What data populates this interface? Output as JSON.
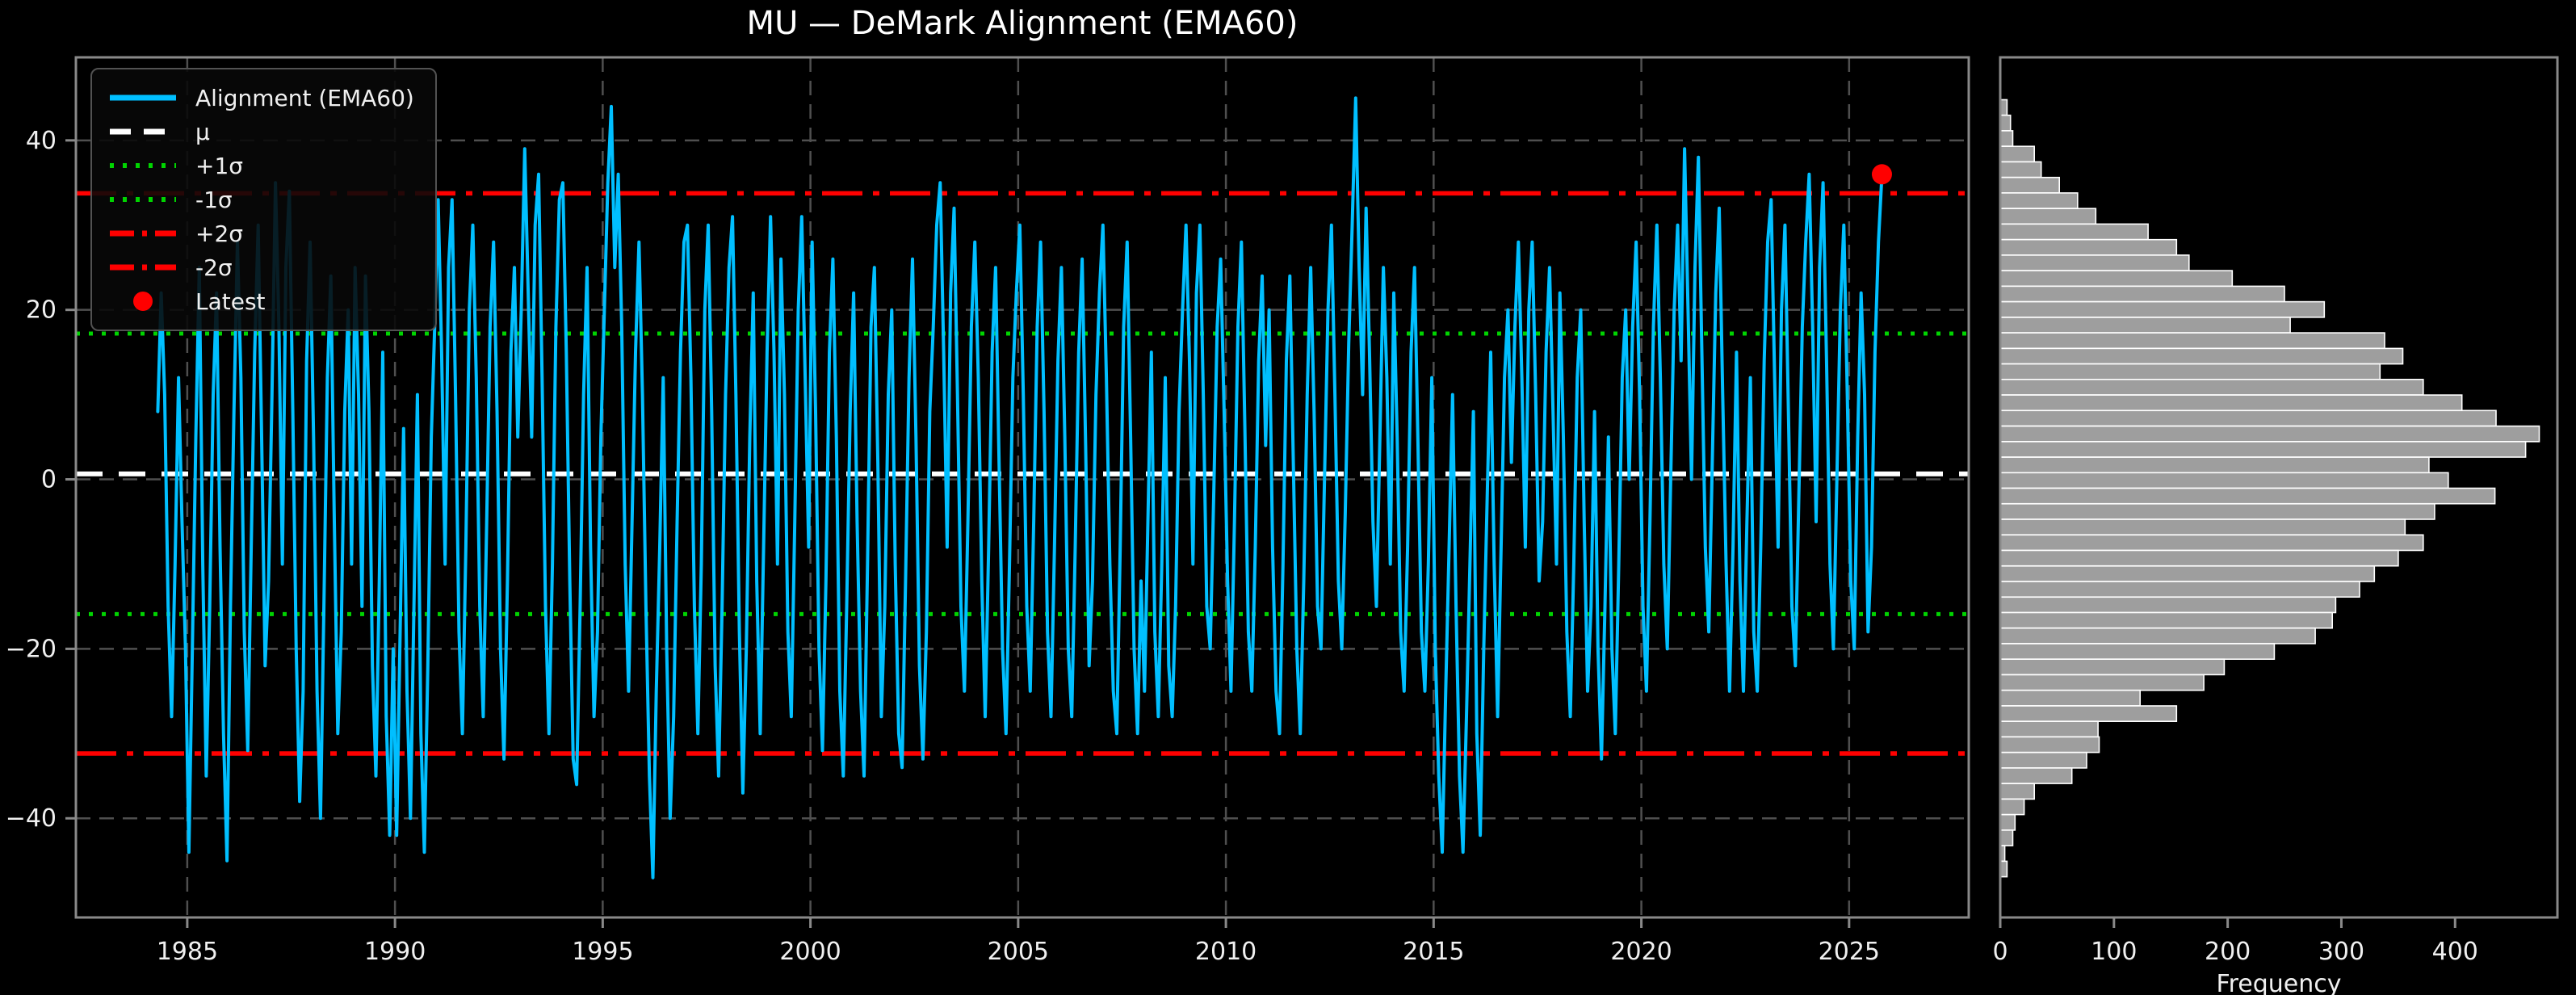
{
  "title": "MU — DeMark Alignment (EMA60)",
  "colors": {
    "background": "#000000",
    "series_line": "#00BFFF",
    "mu_line": "#FFFFFF",
    "sigma1_line": "#00D400",
    "sigma2_line": "#FF0000",
    "latest_marker": "#FF0000",
    "grid": "#4f4f4f",
    "spine": "#898989",
    "tick_text": "#f0f0f0",
    "hist_bar_fill": "#9e9e9e",
    "hist_bar_edge": "#ffffff"
  },
  "legend": {
    "items": [
      {
        "label": "Alignment (EMA60)",
        "style": "solid",
        "color": "#00BFFF"
      },
      {
        "label": "μ",
        "style": "dashed",
        "color": "#FFFFFF"
      },
      {
        "label": "+1σ",
        "style": "dotted",
        "color": "#00D400"
      },
      {
        "label": "-1σ",
        "style": "dotted",
        "color": "#00D400"
      },
      {
        "label": "+2σ",
        "style": "dashdot",
        "color": "#FF0000"
      },
      {
        "label": "-2σ",
        "style": "dashdot",
        "color": "#FF0000"
      },
      {
        "label": "Latest",
        "style": "marker",
        "color": "#FF0000"
      }
    ]
  },
  "chart_data": [
    {
      "type": "line",
      "panel": "main",
      "title": "MU — DeMark Alignment (EMA60)",
      "xlabel": "",
      "ylabel": "",
      "xlim": [
        1982.32,
        2027.88
      ],
      "ylim": [
        -51.7,
        49.8
      ],
      "grid": true,
      "x_ticks": [
        1985,
        1990,
        1995,
        2000,
        2005,
        2010,
        2015,
        2020,
        2025
      ],
      "x_tick_labels": [
        "1985",
        "1990",
        "1995",
        "2000",
        "2005",
        "2010",
        "2015",
        "2020",
        "2025"
      ],
      "y_ticks": [
        -40,
        -20,
        0,
        20,
        40
      ],
      "y_tick_labels": [
        "−40",
        "−20",
        "0",
        "20",
        "40"
      ],
      "stat_lines": {
        "mu": 0.65,
        "plus1sigma": 17.2,
        "minus1sigma": -15.9,
        "plus2sigma": 33.75,
        "minus2sigma": -32.35
      },
      "latest_point": {
        "x": 2025.79,
        "y": 36
      },
      "legend_position": "upper left",
      "series": [
        {
          "name": "Alignment (EMA60)",
          "x_start": 1984.29,
          "x_end": 2025.79,
          "values": [
            8,
            22,
            10,
            -15,
            -28,
            -10,
            12,
            -5,
            -20,
            -44,
            -20,
            5,
            25,
            -10,
            -35,
            -15,
            10,
            22,
            -8,
            -30,
            -45,
            -15,
            8,
            28,
            12,
            -18,
            -32,
            -8,
            15,
            30,
            5,
            -22,
            -12,
            10,
            35,
            18,
            -10,
            25,
            34,
            8,
            -20,
            -38,
            -25,
            14,
            28,
            5,
            -25,
            -40,
            -15,
            12,
            24,
            -5,
            -30,
            -18,
            8,
            20,
            -10,
            25,
            10,
            -15,
            24,
            8,
            -22,
            -35,
            -12,
            15,
            -28,
            -42,
            -20,
            -42,
            -18,
            6,
            -25,
            -40,
            -15,
            10,
            -30,
            -44,
            -22,
            5,
            18,
            33,
            15,
            -10,
            25,
            33,
            10,
            -18,
            -30,
            -8,
            20,
            30,
            12,
            -15,
            -28,
            -5,
            18,
            28,
            8,
            -20,
            -33,
            -12,
            15,
            25,
            5,
            20,
            39,
            22,
            5,
            30,
            36,
            12,
            -15,
            -30,
            -10,
            18,
            33,
            35,
            15,
            -12,
            -33,
            -36,
            -15,
            10,
            25,
            -8,
            -28,
            -18,
            5,
            20,
            35,
            44,
            25,
            36,
            18,
            -10,
            -25,
            -5,
            15,
            28,
            10,
            -15,
            -35,
            -47,
            -25,
            -8,
            12,
            -20,
            -40,
            -28,
            -5,
            15,
            28,
            30,
            12,
            -15,
            -30,
            -10,
            20,
            30,
            8,
            -22,
            -35,
            -15,
            10,
            25,
            31,
            10,
            -18,
            -37,
            -20,
            5,
            22,
            -12,
            -30,
            -8,
            15,
            31,
            15,
            -10,
            26,
            10,
            -18,
            -28,
            -5,
            20,
            31,
            12,
            -8,
            28,
            8,
            -20,
            -32,
            -12,
            15,
            26,
            5,
            -25,
            -35,
            -15,
            8,
            22,
            -5,
            -25,
            -35,
            -10,
            18,
            25,
            2,
            -28,
            -15,
            10,
            20,
            -10,
            -30,
            -34,
            -12,
            12,
            26,
            5,
            -22,
            -33,
            -18,
            8,
            18,
            30,
            35,
            15,
            -8,
            22,
            32,
            10,
            -15,
            -25,
            -5,
            18,
            28,
            12,
            -12,
            -28,
            -8,
            15,
            25,
            2,
            -20,
            -30,
            -10,
            12,
            22,
            30,
            10,
            -15,
            -25,
            -5,
            18,
            28,
            8,
            -18,
            -28,
            -8,
            14,
            25,
            5,
            -20,
            -28,
            -8,
            15,
            26,
            4,
            -22,
            -12,
            10,
            22,
            30,
            12,
            -10,
            -25,
            -30,
            -8,
            18,
            28,
            5,
            -20,
            -30,
            -12,
            -25,
            -5,
            15,
            -18,
            -28,
            -10,
            12,
            -22,
            -28,
            -15,
            8,
            20,
            30,
            14,
            -10,
            22,
            30,
            10,
            -15,
            -20,
            -2,
            18,
            26,
            8,
            -12,
            -25,
            -5,
            18,
            28,
            6,
            -18,
            -25,
            -8,
            14,
            24,
            4,
            20,
            -8,
            -25,
            -30,
            -10,
            14,
            24,
            2,
            -20,
            -30,
            -12,
            10,
            25,
            8,
            -15,
            -20,
            0,
            20,
            30,
            10,
            -12,
            -20,
            -4,
            16,
            30,
            45,
            25,
            10,
            32,
            15,
            -5,
            -15,
            5,
            25,
            12,
            -10,
            22,
            5,
            -18,
            -25,
            -8,
            15,
            25,
            4,
            -18,
            -25,
            -10,
            12,
            -20,
            -35,
            -44,
            -25,
            -8,
            10,
            -15,
            -35,
            -44,
            -28,
            -10,
            8,
            -30,
            -42,
            -20,
            -2,
            15,
            -10,
            -28,
            -8,
            12,
            20,
            2,
            18,
            28,
            12,
            -8,
            20,
            28,
            10,
            -12,
            -5,
            15,
            25,
            8,
            -10,
            22,
            5,
            -18,
            -28,
            -10,
            12,
            20,
            -5,
            -25,
            -15,
            8,
            -20,
            -33,
            -15,
            5,
            -20,
            -30,
            -10,
            12,
            20,
            0,
            18,
            28,
            10,
            -15,
            -25,
            -5,
            18,
            30,
            12,
            -10,
            -20,
            0,
            20,
            30,
            14,
            39,
            20,
            0,
            25,
            38,
            15,
            -8,
            -18,
            2,
            22,
            32,
            10,
            -10,
            -25,
            -8,
            15,
            -12,
            -25,
            -5,
            12,
            -18,
            -25,
            -8,
            14,
            28,
            33,
            12,
            -8,
            20,
            30,
            8,
            -15,
            -22,
            -2,
            18,
            28,
            36,
            18,
            -5,
            25,
            35,
            14,
            -10,
            -20,
            0,
            20,
            30,
            10,
            -12,
            -20,
            5,
            22,
            10,
            -18,
            -8,
            15,
            28,
            36
          ]
        }
      ]
    },
    {
      "type": "bar",
      "panel": "histogram",
      "orientation": "horizontal",
      "xlabel": "Frequency",
      "xlim": [
        0,
        490
      ],
      "x_ticks": [
        0,
        100,
        200,
        300,
        400
      ],
      "x_tick_labels": [
        "0",
        "100",
        "200",
        "300",
        "400"
      ],
      "grid": false,
      "bin_value_top": 44.8,
      "bin_value_bottom": -46.9,
      "bin_count": 50,
      "counts_top_to_bottom": [
        6,
        9,
        11,
        30,
        36,
        52,
        68,
        84,
        130,
        155,
        166,
        204,
        250,
        285,
        255,
        338,
        354,
        334,
        372,
        406,
        436,
        474,
        462,
        377,
        394,
        435,
        382,
        356,
        372,
        350,
        329,
        316,
        295,
        292,
        277,
        241,
        197,
        179,
        123,
        155,
        86,
        87,
        76,
        63,
        30,
        21,
        13,
        11,
        4,
        6
      ]
    }
  ]
}
